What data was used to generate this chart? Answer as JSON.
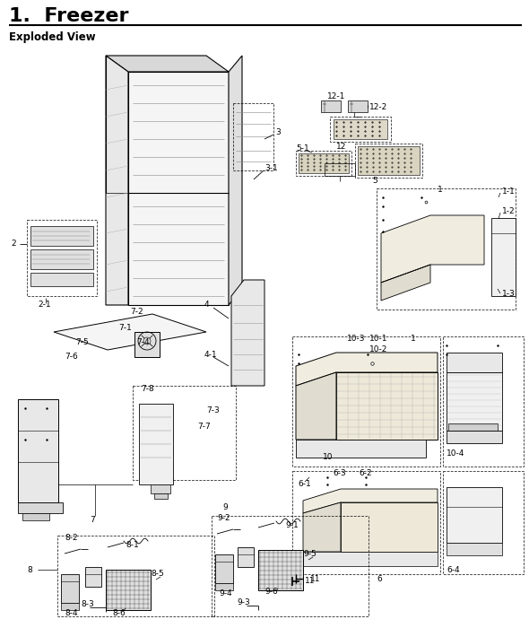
{
  "title": "1.  Freezer",
  "subtitle": "Exploded View",
  "bg_color": "#ffffff",
  "title_fontsize": 16,
  "subtitle_fontsize": 8.5,
  "label_fontsize": 6.5,
  "line_color": "#222222"
}
